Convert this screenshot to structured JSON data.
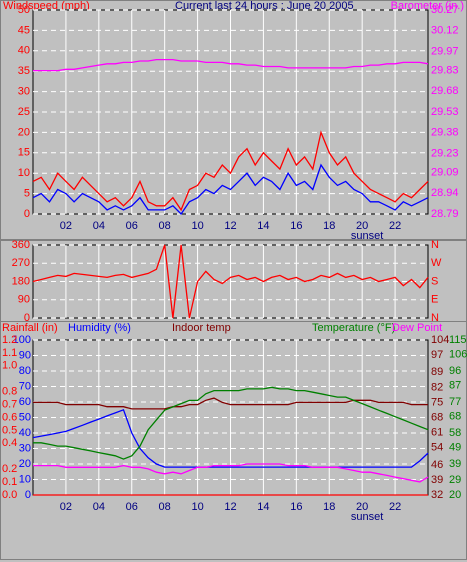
{
  "chart_data": [
    {
      "type": "line",
      "title": "Current last 24 hours : June 20 2005",
      "ylabel": "Windspeed (mph)",
      "y2label": "Barometer (in.)",
      "x": [
        0,
        0.5,
        1,
        1.5,
        2,
        2.5,
        3,
        3.5,
        4,
        4.5,
        5,
        5.5,
        6,
        6.5,
        7,
        7.5,
        8,
        8.5,
        9,
        9.5,
        10,
        10.5,
        11,
        11.5,
        12,
        12.5,
        13,
        13.5,
        14,
        14.5,
        15,
        15.5,
        16,
        16.5,
        17,
        17.5,
        18,
        18.5,
        19,
        19.5,
        20,
        20.5,
        21,
        21.5,
        22,
        22.5,
        23,
        23.5,
        24
      ],
      "xlim": [
        0,
        24
      ],
      "xticks": [
        {
          "value": 2,
          "label": "02"
        },
        {
          "value": 4,
          "label": "04"
        },
        {
          "value": 6,
          "label": "06"
        },
        {
          "value": 8,
          "label": "08"
        },
        10,
        12,
        14,
        16,
        18,
        20,
        22
      ],
      "ylim": [
        0,
        50
      ],
      "yticks": [
        0,
        5,
        10,
        15,
        20,
        25,
        30,
        35,
        40,
        45,
        50
      ],
      "y2lim": [
        28.79,
        30.27
      ],
      "y2ticks": [
        28.79,
        28.94,
        29.09,
        29.23,
        29.38,
        29.53,
        29.68,
        29.83,
        29.97,
        30.12,
        30.27
      ],
      "grid": true,
      "annotations": [
        {
          "text": "sunset",
          "x": 20.3
        }
      ],
      "series": [
        {
          "color": "#ff0000",
          "values": [
            8,
            9,
            6,
            10,
            8,
            6,
            9,
            7,
            5,
            3,
            4,
            2,
            4,
            8,
            3,
            2,
            2,
            4,
            1,
            6,
            7,
            10,
            9,
            12,
            10,
            14,
            16,
            12,
            15,
            13,
            11,
            16,
            12,
            14,
            11,
            20,
            15,
            12,
            14,
            10,
            8,
            6,
            5,
            4,
            3,
            5,
            4,
            6,
            8
          ]
        },
        {
          "color": "#0000ff",
          "values": [
            4,
            5,
            3,
            6,
            5,
            3,
            5,
            4,
            3,
            1,
            2,
            1,
            2,
            4,
            1,
            1,
            1,
            2,
            0,
            3,
            4,
            6,
            5,
            7,
            6,
            8,
            10,
            7,
            9,
            8,
            6,
            10,
            7,
            8,
            6,
            12,
            9,
            7,
            8,
            6,
            5,
            3,
            3,
            2,
            1,
            3,
            2,
            3,
            4
          ]
        },
        {
          "color": "#ff00ff",
          "axis": "y2",
          "values": [
            29.83,
            29.83,
            29.83,
            29.83,
            29.84,
            29.84,
            29.85,
            29.86,
            29.87,
            29.88,
            29.88,
            29.89,
            29.89,
            29.9,
            29.9,
            29.91,
            29.91,
            29.91,
            29.9,
            29.9,
            29.9,
            29.89,
            29.89,
            29.89,
            29.88,
            29.88,
            29.87,
            29.87,
            29.86,
            29.86,
            29.86,
            29.85,
            29.85,
            29.85,
            29.85,
            29.85,
            29.85,
            29.85,
            29.85,
            29.86,
            29.86,
            29.87,
            29.87,
            29.88,
            29.88,
            29.89,
            29.89,
            29.89,
            29.88
          ]
        }
      ]
    },
    {
      "type": "line",
      "x": [
        0,
        0.5,
        1,
        1.5,
        2,
        2.5,
        3,
        3.5,
        4,
        4.5,
        5,
        5.5,
        6,
        6.5,
        7,
        7.5,
        8,
        8.5,
        9,
        9.5,
        10,
        10.5,
        11,
        11.5,
        12,
        12.5,
        13,
        13.5,
        14,
        14.5,
        15,
        15.5,
        16,
        16.5,
        17,
        17.5,
        18,
        18.5,
        19,
        19.5,
        20,
        20.5,
        21,
        21.5,
        22,
        22.5,
        23,
        23.5,
        24
      ],
      "xlim": [
        0,
        24
      ],
      "xticks": [
        2,
        4,
        6,
        8,
        10,
        12,
        14,
        16,
        18,
        20,
        22
      ],
      "ylim": [
        0,
        360
      ],
      "yticks": [
        0,
        90,
        180,
        270,
        360
      ],
      "y2lim": [
        0,
        360
      ],
      "y2ticks": [
        {
          "value": 0,
          "label": "N"
        },
        {
          "value": 90,
          "label": "E"
        },
        {
          "value": 180,
          "label": "S"
        },
        {
          "value": 270,
          "label": "W"
        },
        {
          "value": 360,
          "label": "N"
        }
      ],
      "grid": true,
      "series": [
        {
          "color": "#ff0000",
          "values": [
            180,
            190,
            200,
            210,
            205,
            220,
            215,
            210,
            205,
            200,
            210,
            215,
            200,
            210,
            220,
            240,
            360,
            0,
            360,
            0,
            180,
            230,
            190,
            170,
            200,
            210,
            190,
            200,
            180,
            200,
            210,
            190,
            200,
            180,
            190,
            210,
            200,
            220,
            200,
            210,
            190,
            200,
            180,
            190,
            200,
            160,
            190,
            150,
            200
          ]
        }
      ]
    },
    {
      "type": "line",
      "x": [
        0,
        0.5,
        1,
        1.5,
        2,
        2.5,
        3,
        3.5,
        4,
        4.5,
        5,
        5.5,
        6,
        6.5,
        7,
        7.5,
        8,
        8.5,
        9,
        9.5,
        10,
        10.5,
        11,
        11.5,
        12,
        12.5,
        13,
        13.5,
        14,
        14.5,
        15,
        15.5,
        16,
        16.5,
        17,
        17.5,
        18,
        18.5,
        19,
        19.5,
        20,
        20.5,
        21,
        21.5,
        22,
        22.5,
        23,
        23.5,
        24
      ],
      "xlim": [
        0,
        24
      ],
      "xticks": [
        {
          "value": 2,
          "label": "02"
        },
        {
          "value": 4,
          "label": "04"
        },
        {
          "value": 6,
          "label": "06"
        },
        {
          "value": 8,
          "label": "08"
        },
        10,
        12,
        14,
        16,
        18,
        20,
        22
      ],
      "ylim": [
        0,
        100
      ],
      "yticks": [
        0,
        10,
        20,
        30,
        40,
        50,
        60,
        70,
        80,
        90,
        100
      ],
      "y2lim": [
        32,
        104
      ],
      "y2ticks": [
        32,
        39,
        46,
        54,
        61,
        68,
        75,
        82,
        89,
        97,
        104
      ],
      "y3lim": [
        20,
        115
      ],
      "y3ticks": [
        20,
        29,
        39,
        49,
        58,
        68,
        77,
        87,
        96,
        106,
        115
      ],
      "y4lim": [
        0,
        1.2
      ],
      "y4ticks": [
        {
          "value": 0,
          "label": "0.0"
        },
        0.1,
        0.2,
        0.4,
        0.5,
        0.6,
        0.7,
        0.8,
        {
          "value": 1,
          "label": "1.0"
        },
        1.1,
        1.2
      ],
      "grid": true,
      "annotations": [
        {
          "text": "sunset",
          "x": 20.3
        }
      ],
      "series": [
        {
          "name": "Rainfall (in)",
          "color": "#ff0000",
          "axis": "y4",
          "values": [
            0,
            0,
            0,
            0,
            0,
            0,
            0,
            0,
            0,
            0,
            0,
            0,
            0,
            0,
            0,
            0,
            0,
            0,
            0,
            0,
            0,
            0,
            0,
            0,
            0,
            0,
            0,
            0,
            0,
            0,
            0,
            0,
            0,
            0,
            0,
            0,
            0,
            0,
            0,
            0,
            0,
            0,
            0,
            0,
            0,
            0,
            0,
            0,
            0
          ]
        },
        {
          "name": "Humidity (%)",
          "color": "#0000ff",
          "values": [
            37,
            38,
            39,
            40,
            41,
            43,
            45,
            47,
            49,
            51,
            53,
            55,
            40,
            30,
            24,
            20,
            18,
            18,
            18,
            18,
            18,
            18,
            18,
            18,
            18,
            18,
            18,
            18,
            18,
            18,
            18,
            18,
            18,
            18,
            18,
            18,
            18,
            18,
            18,
            18,
            18,
            18,
            18,
            18,
            18,
            18,
            18,
            22,
            27
          ]
        },
        {
          "name": "Indoor temp",
          "color": "#800000",
          "axis": "y2",
          "values": [
            75,
            75,
            75,
            75,
            74,
            74,
            74,
            74,
            74,
            73,
            73,
            73,
            72,
            72,
            72,
            72,
            72,
            73,
            73,
            74,
            74,
            76,
            77,
            75,
            74,
            74,
            74,
            74,
            74,
            74,
            74,
            74,
            75,
            75,
            75,
            75,
            75,
            75,
            75,
            76,
            76,
            76,
            75,
            75,
            75,
            75,
            74,
            74,
            74
          ]
        },
        {
          "name": "Temperature (°F)",
          "color": "#008000",
          "axis": "y3",
          "values": [
            52,
            52,
            51,
            50,
            50,
            49,
            48,
            47,
            46,
            45,
            44,
            42,
            44,
            50,
            60,
            66,
            72,
            74,
            76,
            78,
            78,
            82,
            84,
            84,
            84,
            84,
            85,
            85,
            85,
            86,
            85,
            85,
            84,
            84,
            83,
            82,
            81,
            80,
            80,
            78,
            76,
            74,
            72,
            70,
            68,
            66,
            64,
            62,
            60
          ]
        },
        {
          "name": "Dew Point",
          "color": "#ff00ff",
          "axis": "y3",
          "values": [
            38,
            38,
            38,
            38,
            37,
            37,
            37,
            37,
            37,
            37,
            37,
            38,
            37,
            37,
            36,
            34,
            33,
            34,
            33,
            35,
            37,
            37,
            38,
            38,
            38,
            38,
            39,
            39,
            39,
            39,
            39,
            38,
            38,
            38,
            37,
            37,
            37,
            37,
            36,
            35,
            34,
            34,
            33,
            32,
            31,
            30,
            29,
            28,
            31
          ]
        }
      ]
    }
  ]
}
